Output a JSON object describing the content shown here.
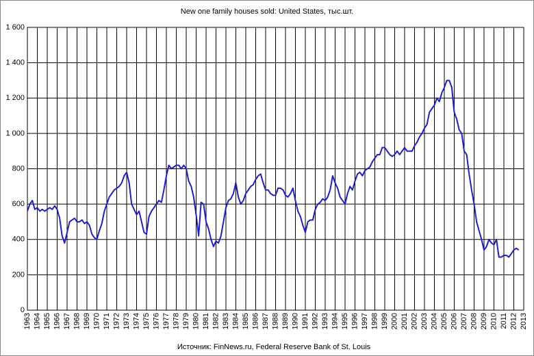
{
  "chart_data": {
    "type": "line",
    "title": "New one family houses sold: United States, тыс.шт.",
    "source": "Источник:  FinNews.ru,  Federal  Reserve  Bank of St. Louis",
    "color": "#1c1cdc",
    "grid": true,
    "x": [
      1963,
      1963.25,
      1963.5,
      1963.75,
      1964,
      1964.25,
      1964.5,
      1964.75,
      1965,
      1965.25,
      1965.5,
      1965.75,
      1966,
      1966.25,
      1966.5,
      1966.75,
      1967,
      1967.25,
      1967.5,
      1967.75,
      1968,
      1968.25,
      1968.5,
      1968.75,
      1969,
      1969.25,
      1969.5,
      1969.75,
      1970,
      1970.25,
      1970.5,
      1970.75,
      1971,
      1971.25,
      1971.5,
      1971.75,
      1972,
      1972.25,
      1972.5,
      1972.75,
      1973,
      1973.25,
      1973.5,
      1973.75,
      1974,
      1974.25,
      1974.5,
      1974.75,
      1975,
      1975.25,
      1975.5,
      1975.75,
      1976,
      1976.25,
      1976.5,
      1976.75,
      1977,
      1977.25,
      1977.5,
      1977.75,
      1978,
      1978.25,
      1978.5,
      1978.75,
      1979,
      1979.25,
      1979.5,
      1979.75,
      1980,
      1980.25,
      1980.5,
      1980.75,
      1981,
      1981.25,
      1981.5,
      1981.75,
      1982,
      1982.25,
      1982.5,
      1982.75,
      1983,
      1983.25,
      1983.5,
      1983.75,
      1984,
      1984.25,
      1984.5,
      1984.75,
      1985,
      1985.25,
      1985.5,
      1985.75,
      1986,
      1986.25,
      1986.5,
      1986.75,
      1987,
      1987.25,
      1987.5,
      1987.75,
      1988,
      1988.25,
      1988.5,
      1988.75,
      1989,
      1989.25,
      1989.5,
      1989.75,
      1990,
      1990.25,
      1990.5,
      1990.75,
      1991,
      1991.25,
      1991.5,
      1991.75,
      1992,
      1992.25,
      1992.5,
      1992.75,
      1993,
      1993.25,
      1993.5,
      1993.75,
      1994,
      1994.25,
      1994.5,
      1994.75,
      1995,
      1995.25,
      1995.5,
      1995.75,
      1996,
      1996.25,
      1996.5,
      1996.75,
      1997,
      1997.25,
      1997.5,
      1997.75,
      1998,
      1998.25,
      1998.5,
      1998.75,
      1999,
      1999.25,
      1999.5,
      1999.75,
      2000,
      2000.25,
      2000.5,
      2000.75,
      2001,
      2001.25,
      2001.5,
      2001.75,
      2002,
      2002.25,
      2002.5,
      2002.75,
      2003,
      2003.25,
      2003.5,
      2003.75,
      2004,
      2004.25,
      2004.5,
      2004.75,
      2005,
      2005.25,
      2005.5,
      2005.75,
      2006,
      2006.25,
      2006.5,
      2006.75,
      2007,
      2007.25,
      2007.5,
      2007.75,
      2008,
      2008.25,
      2008.5,
      2008.75,
      2009,
      2009.25,
      2009.5,
      2009.75,
      2010,
      2010.25,
      2010.5,
      2010.75,
      2011,
      2011.25,
      2011.5,
      2011.75,
      2012,
      2012.25,
      2012.5
    ],
    "values": [
      560,
      600,
      620,
      570,
      580,
      560,
      570,
      560,
      570,
      580,
      570,
      590,
      570,
      520,
      420,
      380,
      440,
      500,
      510,
      520,
      500,
      500,
      510,
      490,
      500,
      480,
      430,
      410,
      400,
      450,
      490,
      560,
      600,
      640,
      660,
      680,
      690,
      700,
      720,
      760,
      780,
      720,
      600,
      570,
      540,
      560,
      500,
      440,
      430,
      530,
      560,
      580,
      600,
      620,
      610,
      680,
      760,
      820,
      800,
      810,
      820,
      820,
      800,
      820,
      800,
      730,
      700,
      640,
      540,
      420,
      610,
      600,
      500,
      460,
      400,
      360,
      390,
      380,
      420,
      500,
      580,
      620,
      630,
      660,
      720,
      640,
      600,
      620,
      660,
      680,
      700,
      710,
      740,
      760,
      770,
      720,
      680,
      680,
      660,
      650,
      650,
      690,
      690,
      680,
      650,
      640,
      660,
      690,
      620,
      560,
      530,
      480,
      440,
      500,
      510,
      510,
      570,
      600,
      610,
      630,
      620,
      640,
      680,
      760,
      720,
      690,
      640,
      620,
      600,
      660,
      700,
      680,
      730,
      770,
      780,
      760,
      790,
      800,
      810,
      840,
      860,
      880,
      880,
      920,
      920,
      900,
      880,
      870,
      880,
      900,
      880,
      900,
      920,
      900,
      900,
      900,
      930,
      950,
      980,
      1000,
      1030,
      1050,
      1120,
      1140,
      1160,
      1200,
      1180,
      1230,
      1260,
      1300,
      1300,
      1260,
      1120,
      1080,
      1020,
      1000,
      900,
      880,
      770,
      680,
      600,
      500,
      450,
      400,
      340,
      360,
      400,
      380,
      370,
      400,
      300,
      300,
      310,
      310,
      300,
      320,
      340,
      350,
      340
    ],
    "xlim": [
      1963,
      2013
    ],
    "xticks": [
      1963,
      1964,
      1965,
      1966,
      1967,
      1968,
      1969,
      1970,
      1971,
      1972,
      1973,
      1974,
      1975,
      1976,
      1977,
      1978,
      1979,
      1980,
      1981,
      1982,
      1983,
      1984,
      1985,
      1986,
      1987,
      1988,
      1989,
      1990,
      1991,
      1992,
      1993,
      1994,
      1995,
      1996,
      1997,
      1998,
      1999,
      2000,
      2001,
      2002,
      2003,
      2004,
      2005,
      2006,
      2007,
      2008,
      2009,
      2010,
      2011,
      2012,
      2013
    ],
    "ylim": [
      0,
      1600
    ],
    "yticks": [
      0,
      200,
      400,
      600,
      800,
      {
        "value": 1000,
        "label": "1 000"
      },
      {
        "value": 1200,
        "label": "1 200"
      },
      {
        "value": 1400,
        "label": "1 400"
      },
      {
        "value": 1600,
        "label": "1 600"
      }
    ]
  }
}
